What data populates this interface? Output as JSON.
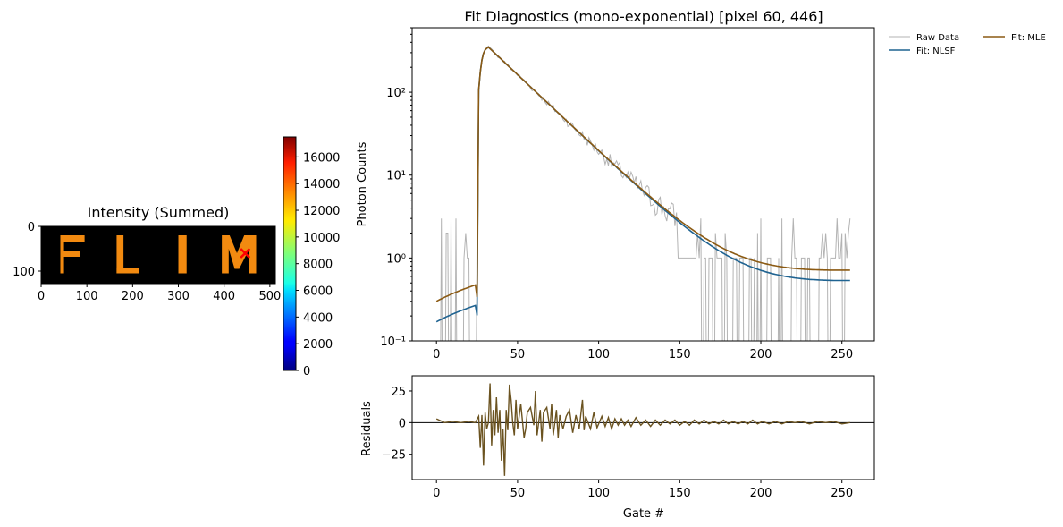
{
  "chart_data": [
    {
      "type": "heatmap",
      "title": "Intensity (Summed)",
      "letters": [
        "F",
        "L",
        "I",
        "M"
      ],
      "x_range": [
        0,
        512
      ],
      "y_range": [
        0,
        128
      ],
      "x_ticks": [
        0,
        100,
        200,
        300,
        400,
        500
      ],
      "y_ticks": [
        0,
        100
      ],
      "marker": {
        "symbol": "x",
        "x": 446,
        "y": 60,
        "color": "#ff0000"
      },
      "colormap": "jet",
      "colorbar": {
        "min": 0,
        "max": 17500,
        "ticks": [
          0,
          2000,
          4000,
          6000,
          8000,
          10000,
          12000,
          14000,
          16000
        ]
      }
    },
    {
      "type": "line",
      "title": "Fit Diagnostics (mono-exponential)  [pixel 60, 446]",
      "xlabel": "",
      "ylabel": "Photon Counts",
      "yscale": "log",
      "xlim": [
        -15,
        270
      ],
      "ylim": [
        0.1,
        600
      ],
      "x_ticks": [
        0,
        50,
        100,
        150,
        200,
        250
      ],
      "y_ticks": [
        {
          "value": 0.1,
          "label": "10⁻¹"
        },
        {
          "value": 1,
          "label": "10⁰"
        },
        {
          "value": 10,
          "label": "10¹"
        },
        {
          "value": 100,
          "label": "10²"
        }
      ],
      "legend_position": "outside upper right",
      "model": {
        "gates": 256,
        "onset_gate": 25,
        "peak_gate": 32,
        "peak_counts": 350,
        "tau_gates": 23.5,
        "offset_nlsf": 0.17,
        "offset_mle": 0.3
      },
      "series": [
        {
          "name": "Raw Data",
          "color": "#b3b3b3",
          "style": "noisy"
        },
        {
          "name": "Fit: NLSF",
          "color": "#1f6391",
          "style": "smooth"
        },
        {
          "name": "Fit: MLE",
          "color": "#8b5a13",
          "style": "smooth"
        }
      ]
    },
    {
      "type": "line",
      "xlabel": "Gate #",
      "ylabel": "Residuals",
      "xlim": [
        -15,
        270
      ],
      "ylim": [
        -45,
        37
      ],
      "x_ticks": [
        0,
        50,
        100,
        150,
        200,
        250
      ],
      "y_ticks": [
        -25,
        0,
        25
      ],
      "zero_line": true,
      "color": "#6b5320",
      "points": [
        [
          0,
          3
        ],
        [
          5,
          0
        ],
        [
          10,
          1
        ],
        [
          15,
          0
        ],
        [
          20,
          1
        ],
        [
          24,
          0
        ],
        [
          26,
          5
        ],
        [
          27,
          -20
        ],
        [
          28,
          6
        ],
        [
          29,
          -34
        ],
        [
          30,
          8
        ],
        [
          31,
          -5
        ],
        [
          32,
          0
        ],
        [
          33,
          31
        ],
        [
          34,
          -18
        ],
        [
          35,
          10
        ],
        [
          36,
          -10
        ],
        [
          37,
          20
        ],
        [
          38,
          -8
        ],
        [
          39,
          10
        ],
        [
          40,
          -30
        ],
        [
          41,
          -5
        ],
        [
          42,
          -42
        ],
        [
          43,
          10
        ],
        [
          44,
          -6
        ],
        [
          45,
          30
        ],
        [
          46,
          18
        ],
        [
          47,
          0
        ],
        [
          48,
          -10
        ],
        [
          49,
          18
        ],
        [
          50,
          -5
        ],
        [
          52,
          15
        ],
        [
          54,
          -12
        ],
        [
          55,
          -5
        ],
        [
          56,
          8
        ],
        [
          58,
          12
        ],
        [
          60,
          -2
        ],
        [
          61,
          25
        ],
        [
          62,
          -10
        ],
        [
          64,
          10
        ],
        [
          65,
          -15
        ],
        [
          66,
          8
        ],
        [
          68,
          12
        ],
        [
          70,
          -5
        ],
        [
          71,
          15
        ],
        [
          72,
          -10
        ],
        [
          74,
          10
        ],
        [
          75,
          -12
        ],
        [
          76,
          6
        ],
        [
          78,
          -5
        ],
        [
          80,
          5
        ],
        [
          82,
          10
        ],
        [
          84,
          -8
        ],
        [
          86,
          6
        ],
        [
          88,
          -5
        ],
        [
          90,
          18
        ],
        [
          91,
          -6
        ],
        [
          92,
          5
        ],
        [
          95,
          -5
        ],
        [
          97,
          8
        ],
        [
          99,
          -4
        ],
        [
          102,
          5
        ],
        [
          104,
          -3
        ],
        [
          106,
          4
        ],
        [
          108,
          -5
        ],
        [
          110,
          3
        ],
        [
          112,
          -2
        ],
        [
          114,
          3
        ],
        [
          116,
          -2
        ],
        [
          118,
          2
        ],
        [
          120,
          -3
        ],
        [
          123,
          4
        ],
        [
          126,
          -2
        ],
        [
          129,
          2
        ],
        [
          132,
          -3
        ],
        [
          135,
          2
        ],
        [
          138,
          -2
        ],
        [
          141,
          2
        ],
        [
          144,
          -1
        ],
        [
          147,
          2
        ],
        [
          150,
          -2
        ],
        [
          153,
          1
        ],
        [
          156,
          -2
        ],
        [
          159,
          2
        ],
        [
          162,
          -1
        ],
        [
          165,
          2
        ],
        [
          168,
          -1
        ],
        [
          171,
          1
        ],
        [
          174,
          -1
        ],
        [
          177,
          2
        ],
        [
          180,
          -1
        ],
        [
          183,
          1
        ],
        [
          186,
          -1
        ],
        [
          189,
          1
        ],
        [
          192,
          -1
        ],
        [
          195,
          2
        ],
        [
          198,
          -1
        ],
        [
          201,
          1
        ],
        [
          205,
          -1
        ],
        [
          209,
          1
        ],
        [
          213,
          -1
        ],
        [
          217,
          1
        ],
        [
          221,
          0
        ],
        [
          225,
          1
        ],
        [
          230,
          -1
        ],
        [
          235,
          1
        ],
        [
          240,
          0
        ],
        [
          245,
          1
        ],
        [
          250,
          -1
        ],
        [
          255,
          0
        ]
      ]
    }
  ]
}
